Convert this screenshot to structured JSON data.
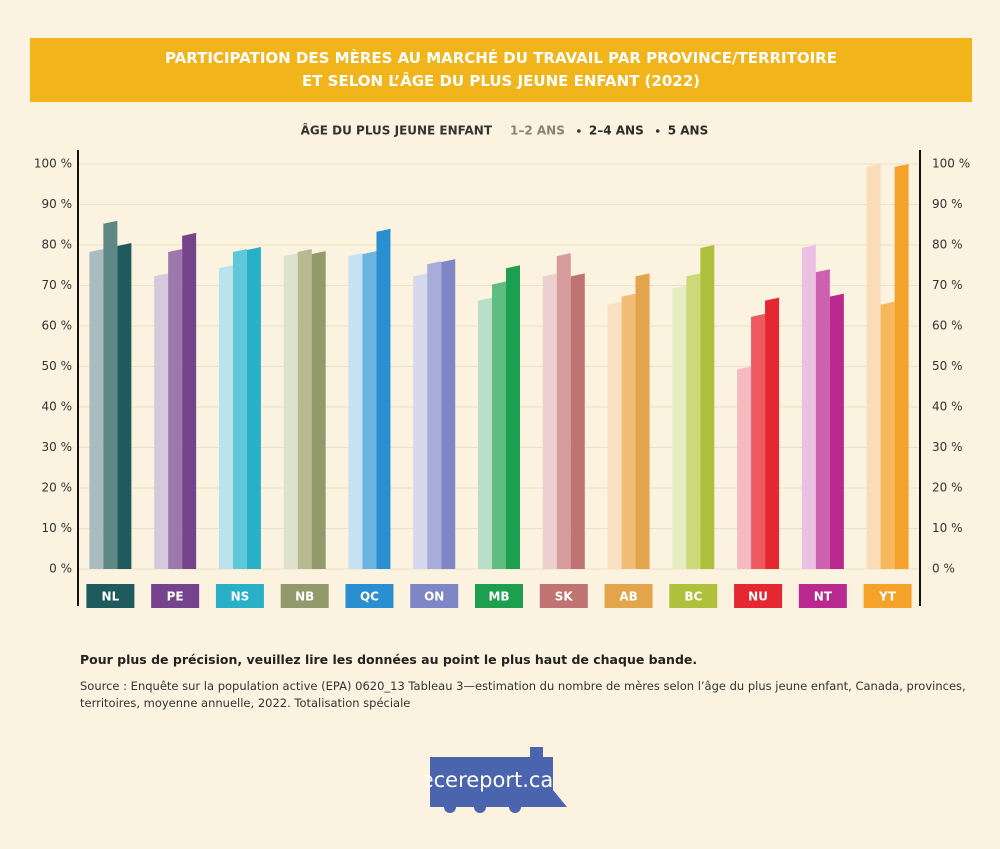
{
  "chart_data": {
    "type": "bar",
    "title": [
      "PARTICIPATION DES MÈRES AU MARCHÉ DU TRAVAIL PAR PROVINCE/TERRITOIRE",
      "ET SELON L’ÂGE DU PLUS JEUNE ENFANT (2022)"
    ],
    "legend_title": "ÂGE DU PLUS JEUNE ENFANT",
    "categories": [
      "NL",
      "PE",
      "NS",
      "NB",
      "QC",
      "ON",
      "MB",
      "SK",
      "AB",
      "BC",
      "NU",
      "NT",
      "YT"
    ],
    "series": [
      {
        "name": "1–2 ANS",
        "legend_color": "#8a8272",
        "colors": [
          "#a9bcc0",
          "#d4c9dd",
          "#bae3ee",
          "#dde2cf",
          "#c6e2f2",
          "#d6d8ee",
          "#badfc9",
          "#ecd0cf",
          "#f9e0c0",
          "#e6edc1",
          "#f7b9c0",
          "#ecc0e2",
          "#fbdcb8"
        ],
        "values": [
          79,
          73,
          75,
          78,
          78,
          73,
          67,
          73,
          66,
          70,
          50,
          80,
          100
        ]
      },
      {
        "name": "2–4 ANS",
        "legend_color": "#2b2b2b",
        "colors": [
          "#5e8785",
          "#9b79ad",
          "#5fc8d8",
          "#b7b990",
          "#6ab4e0",
          "#a8acd9",
          "#60bd81",
          "#d69b9b",
          "#f0be79",
          "#ccd979",
          "#ee5962",
          "#cd61af",
          "#f7b85b"
        ],
        "values": [
          86,
          79,
          79,
          79,
          78.5,
          76,
          71,
          78,
          68,
          73,
          63,
          74,
          66
        ]
      },
      {
        "name": "5 ANS",
        "legend_color": "#2b2b2b",
        "colors": [
          "#1e5a5e",
          "#74438c",
          "#2ab0c6",
          "#929a6c",
          "#2a8fd0",
          "#7f86c5",
          "#1e9f4f",
          "#c07373",
          "#e3a54b",
          "#afc03d",
          "#e52731",
          "#b9288e",
          "#f5a22a"
        ],
        "values": [
          80.5,
          83,
          79.5,
          78.5,
          84,
          76.5,
          75,
          73,
          73,
          80,
          67,
          68,
          100
        ]
      }
    ],
    "ylim": [
      0,
      100
    ],
    "yticks": [
      {
        "value": 0,
        "label": "0 %"
      },
      {
        "value": 10,
        "label": "10 %"
      },
      {
        "value": 20,
        "label": "20 %"
      },
      {
        "value": 30,
        "label": "30 %"
      },
      {
        "value": 40,
        "label": "40 %"
      },
      {
        "value": 50,
        "label": "50 %"
      },
      {
        "value": 60,
        "label": "60 %"
      },
      {
        "value": 70,
        "label": "70 %"
      },
      {
        "value": 80,
        "label": "80 %"
      },
      {
        "value": 90,
        "label": "90 %"
      },
      {
        "value": 100,
        "label": "100 %"
      }
    ],
    "grid": true
  },
  "footer": {
    "note": "Pour plus de précision, veuillez lire les données au point le plus haut de chaque bande.",
    "source": "Source : Enquête sur la population active (EPA) 0620_13 Tableau 3—estimation du nombre de mères selon l’âge du plus jeune enfant, Canada, provinces, territoires, moyenne annuelle, 2022. Totalisation spéciale"
  },
  "logo": "ecereport.ca"
}
